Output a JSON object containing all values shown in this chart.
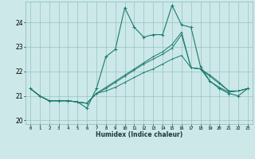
{
  "xlabel": "Humidex (Indice chaleur)",
  "bg_color": "#cce8e8",
  "line_color": "#1a7a6e",
  "grid_color": "#88bbbb",
  "xlim": [
    -0.5,
    23.5
  ],
  "ylim": [
    19.85,
    24.85
  ],
  "yticks": [
    20,
    21,
    22,
    23,
    24
  ],
  "xticks": [
    0,
    1,
    2,
    3,
    4,
    5,
    6,
    7,
    8,
    9,
    10,
    11,
    12,
    13,
    14,
    15,
    16,
    17,
    18,
    19,
    20,
    21,
    22,
    23
  ],
  "series": [
    [
      21.3,
      21.0,
      20.8,
      20.8,
      20.8,
      20.75,
      20.7,
      21.1,
      21.2,
      21.35,
      21.55,
      21.75,
      21.95,
      22.1,
      22.3,
      22.5,
      22.65,
      22.15,
      22.1,
      21.6,
      21.35,
      21.15,
      21.2,
      21.3
    ],
    [
      21.3,
      21.0,
      20.8,
      20.8,
      20.8,
      20.75,
      20.7,
      21.1,
      21.3,
      21.55,
      21.8,
      22.05,
      22.3,
      22.5,
      22.7,
      22.95,
      23.5,
      22.15,
      22.1,
      21.8,
      21.5,
      21.2,
      21.2,
      21.3
    ],
    [
      21.3,
      21.0,
      20.8,
      20.8,
      20.8,
      20.75,
      20.7,
      21.1,
      21.35,
      21.6,
      21.85,
      22.1,
      22.35,
      22.6,
      22.8,
      23.1,
      23.6,
      22.15,
      22.1,
      21.85,
      21.55,
      21.2,
      21.2,
      21.3
    ],
    [
      21.3,
      21.0,
      20.8,
      20.8,
      20.8,
      20.75,
      20.5,
      21.3,
      22.6,
      22.9,
      24.6,
      23.8,
      23.4,
      23.5,
      23.5,
      24.7,
      23.9,
      23.8,
      22.2,
      21.6,
      21.3,
      21.1,
      21.0,
      21.3
    ]
  ]
}
